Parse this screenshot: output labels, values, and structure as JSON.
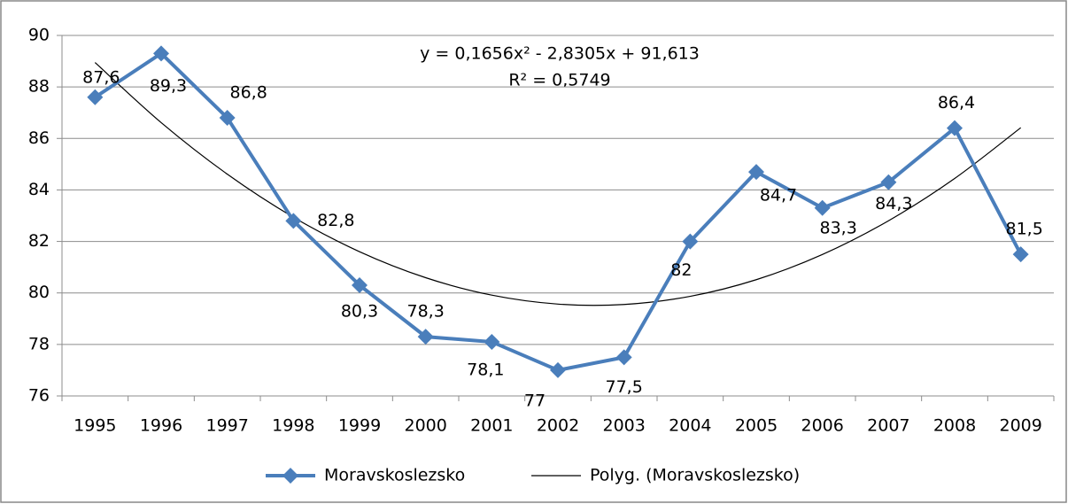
{
  "chart_data": {
    "type": "line",
    "categories": [
      "1995",
      "1996",
      "1997",
      "1998",
      "1999",
      "2000",
      "2001",
      "2002",
      "2003",
      "2004",
      "2005",
      "2006",
      "2007",
      "2008",
      "2009"
    ],
    "series": [
      {
        "name": "Moravskoslezsko",
        "color": "#4a7ebb",
        "values": [
          87.6,
          89.3,
          86.8,
          82.8,
          80.3,
          78.3,
          78.1,
          77,
          77.5,
          82,
          84.7,
          83.3,
          84.3,
          86.4,
          81.5
        ],
        "value_labels": [
          "87,6",
          "89,3",
          "86,8",
          "82,8",
          "80,3",
          "78,3",
          "78,1",
          "77",
          "77,5",
          "82",
          "84,7",
          "83,3",
          "84,3",
          "86,4",
          "81,5"
        ]
      },
      {
        "name": "Polyg. (Moravskoslezsko)",
        "color": "#000000",
        "trendline": true,
        "values": [
          88.948,
          86.614,
          84.612,
          82.941,
          81.601,
          80.592,
          79.914,
          79.567,
          79.552,
          79.868,
          80.515,
          81.493,
          82.803,
          84.444,
          86.416
        ]
      }
    ],
    "annotations": [
      "y = 0,1656x² - 2,8305x + 91,613",
      "R² = 0,5749"
    ],
    "ylim": [
      76,
      90
    ],
    "yticks": [
      76,
      78,
      80,
      82,
      84,
      86,
      88,
      90
    ],
    "grid": true,
    "legend": "bottom"
  }
}
